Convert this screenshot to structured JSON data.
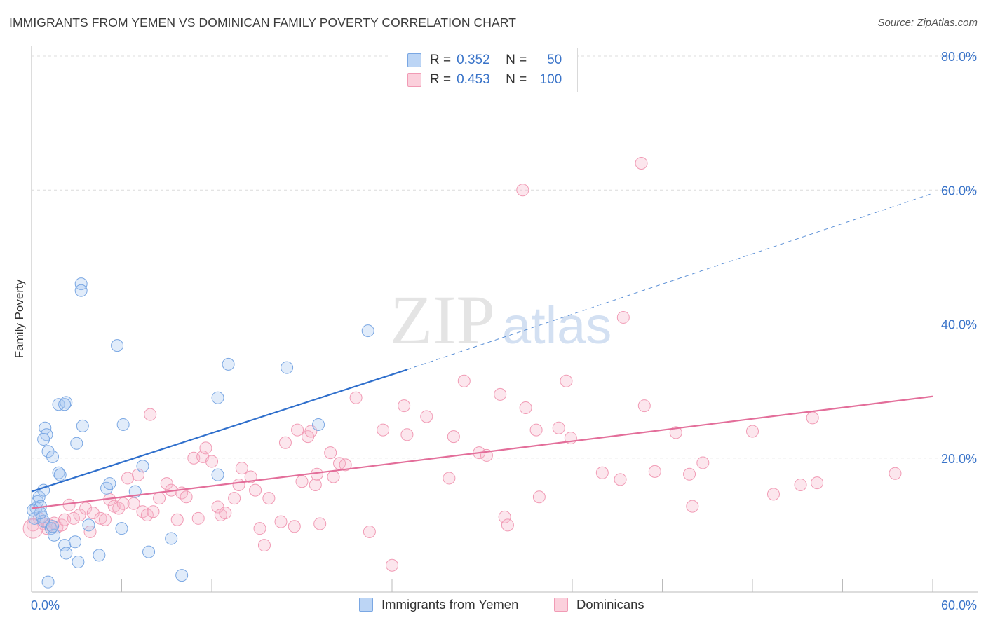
{
  "title": "IMMIGRANTS FROM YEMEN VS DOMINICAN FAMILY POVERTY CORRELATION CHART",
  "source": "Source: ZipAtlas.com",
  "watermark": {
    "zip": "ZIP",
    "atlas": "atlas"
  },
  "legend": {
    "rows": [
      {
        "r_label": "R =",
        "r_value": "0.352",
        "n_label": "N =",
        "n_value": "50",
        "color": "#a9c8f0"
      },
      {
        "r_label": "R =",
        "r_value": "0.453",
        "n_label": "N =",
        "n_value": "100",
        "color": "#f6b8ca"
      }
    ]
  },
  "bottom_legend": {
    "yemen": "Immigrants from Yemen",
    "dominicans": "Dominicans"
  },
  "chart_data": {
    "type": "scatter",
    "title": "IMMIGRANTS FROM YEMEN VS DOMINICAN FAMILY POVERTY CORRELATION CHART",
    "xlabel": "",
    "ylabel": "Family Poverty",
    "xlim": [
      0,
      60
    ],
    "ylim": [
      0,
      80
    ],
    "x_tick_labels": [
      "0.0%",
      "60.0%"
    ],
    "y_tick_labels": [
      "20.0%",
      "40.0%",
      "60.0%",
      "80.0%"
    ],
    "y_ticks": [
      20,
      40,
      60,
      80
    ],
    "colors": {
      "yemen": "#7aa7e3",
      "yemen_line": "#2f6fcc",
      "dominicans": "#f19bb5",
      "dominicans_line": "#e36e9a"
    },
    "series": [
      {
        "name": "Immigrants from Yemen",
        "trend": {
          "x0": 0,
          "y0": 15.0,
          "x1": 25.0,
          "y1": 33.2,
          "dash_x1": 60,
          "dash_y1": 59.5
        },
        "points": [
          [
            0.2,
            11.0
          ],
          [
            0.3,
            12.5
          ],
          [
            0.4,
            13.5
          ],
          [
            0.5,
            14.2
          ],
          [
            0.6,
            12.8
          ],
          [
            0.7,
            11.2
          ],
          [
            0.8,
            10.6
          ],
          [
            0.8,
            15.2
          ],
          [
            0.9,
            24.5
          ],
          [
            1.0,
            23.5
          ],
          [
            0.8,
            22.8
          ],
          [
            1.1,
            21.0
          ],
          [
            1.4,
            20.2
          ],
          [
            1.3,
            9.5
          ],
          [
            1.5,
            8.5
          ],
          [
            1.8,
            17.8
          ],
          [
            1.9,
            17.5
          ],
          [
            1.8,
            28.0
          ],
          [
            2.3,
            28.3
          ],
          [
            2.2,
            28.0
          ],
          [
            2.2,
            7.0
          ],
          [
            2.3,
            5.8
          ],
          [
            3.0,
            22.2
          ],
          [
            2.9,
            7.5
          ],
          [
            3.1,
            4.5
          ],
          [
            3.4,
            24.8
          ],
          [
            3.3,
            46.0
          ],
          [
            3.3,
            45.0
          ],
          [
            3.8,
            10.0
          ],
          [
            4.5,
            5.5
          ],
          [
            5.0,
            15.5
          ],
          [
            5.2,
            16.2
          ],
          [
            5.7,
            36.8
          ],
          [
            6.0,
            9.5
          ],
          [
            6.1,
            25.0
          ],
          [
            6.9,
            15.0
          ],
          [
            7.4,
            18.8
          ],
          [
            7.8,
            6.0
          ],
          [
            9.3,
            8.0
          ],
          [
            10.0,
            2.5
          ],
          [
            12.4,
            17.5
          ],
          [
            12.4,
            29.0
          ],
          [
            13.1,
            34.0
          ],
          [
            17.0,
            33.5
          ],
          [
            19.1,
            25.0
          ],
          [
            22.4,
            39.0
          ],
          [
            1.4,
            9.8
          ],
          [
            1.1,
            1.5
          ],
          [
            0.6,
            11.8
          ],
          [
            0.1,
            12.2
          ]
        ]
      },
      {
        "name": "Dominicans",
        "trend": {
          "x0": 0,
          "y0": 12.5,
          "x1": 60,
          "y1": 29.2
        },
        "points": [
          [
            0.1,
            10.0
          ],
          [
            0.5,
            11.0
          ],
          [
            0.8,
            10.2
          ],
          [
            1.0,
            9.5
          ],
          [
            1.2,
            10.0
          ],
          [
            1.5,
            10.3
          ],
          [
            1.7,
            9.7
          ],
          [
            2.0,
            10.0
          ],
          [
            2.2,
            10.8
          ],
          [
            2.5,
            13.0
          ],
          [
            2.8,
            11.0
          ],
          [
            3.2,
            11.5
          ],
          [
            3.6,
            12.5
          ],
          [
            3.9,
            9.0
          ],
          [
            4.1,
            11.8
          ],
          [
            4.6,
            11.0
          ],
          [
            4.9,
            10.8
          ],
          [
            5.2,
            13.8
          ],
          [
            5.5,
            12.8
          ],
          [
            5.8,
            12.5
          ],
          [
            6.1,
            13.2
          ],
          [
            6.4,
            17.0
          ],
          [
            6.8,
            13.2
          ],
          [
            7.1,
            17.5
          ],
          [
            7.4,
            12.0
          ],
          [
            7.7,
            11.5
          ],
          [
            7.9,
            26.5
          ],
          [
            8.1,
            12.0
          ],
          [
            8.5,
            14.0
          ],
          [
            9.0,
            16.2
          ],
          [
            9.3,
            15.2
          ],
          [
            9.7,
            10.8
          ],
          [
            10.0,
            14.8
          ],
          [
            10.3,
            14.2
          ],
          [
            10.8,
            20.0
          ],
          [
            11.1,
            11.0
          ],
          [
            11.4,
            20.2
          ],
          [
            11.6,
            21.5
          ],
          [
            12.0,
            19.5
          ],
          [
            12.4,
            12.7
          ],
          [
            12.6,
            11.5
          ],
          [
            12.9,
            11.8
          ],
          [
            13.5,
            14.0
          ],
          [
            13.8,
            16.0
          ],
          [
            14.0,
            18.5
          ],
          [
            14.6,
            17.2
          ],
          [
            14.9,
            15.2
          ],
          [
            15.2,
            9.5
          ],
          [
            15.5,
            7.0
          ],
          [
            15.8,
            14.0
          ],
          [
            16.6,
            10.5
          ],
          [
            16.9,
            22.3
          ],
          [
            17.5,
            9.8
          ],
          [
            17.7,
            24.2
          ],
          [
            18.0,
            16.5
          ],
          [
            18.4,
            23.2
          ],
          [
            18.6,
            24.0
          ],
          [
            18.9,
            16.0
          ],
          [
            19.0,
            17.6
          ],
          [
            19.2,
            10.2
          ],
          [
            19.9,
            20.8
          ],
          [
            20.1,
            17.2
          ],
          [
            20.5,
            19.2
          ],
          [
            20.9,
            19.0
          ],
          [
            21.6,
            29.0
          ],
          [
            22.5,
            9.0
          ],
          [
            23.4,
            24.2
          ],
          [
            24.0,
            4.0
          ],
          [
            24.8,
            27.8
          ],
          [
            25.0,
            23.5
          ],
          [
            26.3,
            26.2
          ],
          [
            27.8,
            17.0
          ],
          [
            28.1,
            23.2
          ],
          [
            28.8,
            31.5
          ],
          [
            29.8,
            20.8
          ],
          [
            30.3,
            20.4
          ],
          [
            31.2,
            29.5
          ],
          [
            31.5,
            11.2
          ],
          [
            31.7,
            10.0
          ],
          [
            32.7,
            60.0
          ],
          [
            32.9,
            27.5
          ],
          [
            33.6,
            24.2
          ],
          [
            33.8,
            14.2
          ],
          [
            35.1,
            24.5
          ],
          [
            35.6,
            31.5
          ],
          [
            35.9,
            23.0
          ],
          [
            38.0,
            17.8
          ],
          [
            39.2,
            16.8
          ],
          [
            39.4,
            41.0
          ],
          [
            40.6,
            64.0
          ],
          [
            40.8,
            27.8
          ],
          [
            41.5,
            18.0
          ],
          [
            42.9,
            23.8
          ],
          [
            43.8,
            17.6
          ],
          [
            44.0,
            12.8
          ],
          [
            44.7,
            19.3
          ],
          [
            48.0,
            24.0
          ],
          [
            49.4,
            14.6
          ],
          [
            51.2,
            16.0
          ],
          [
            52.0,
            26.0
          ],
          [
            52.3,
            16.3
          ],
          [
            57.5,
            17.7
          ]
        ]
      }
    ]
  }
}
